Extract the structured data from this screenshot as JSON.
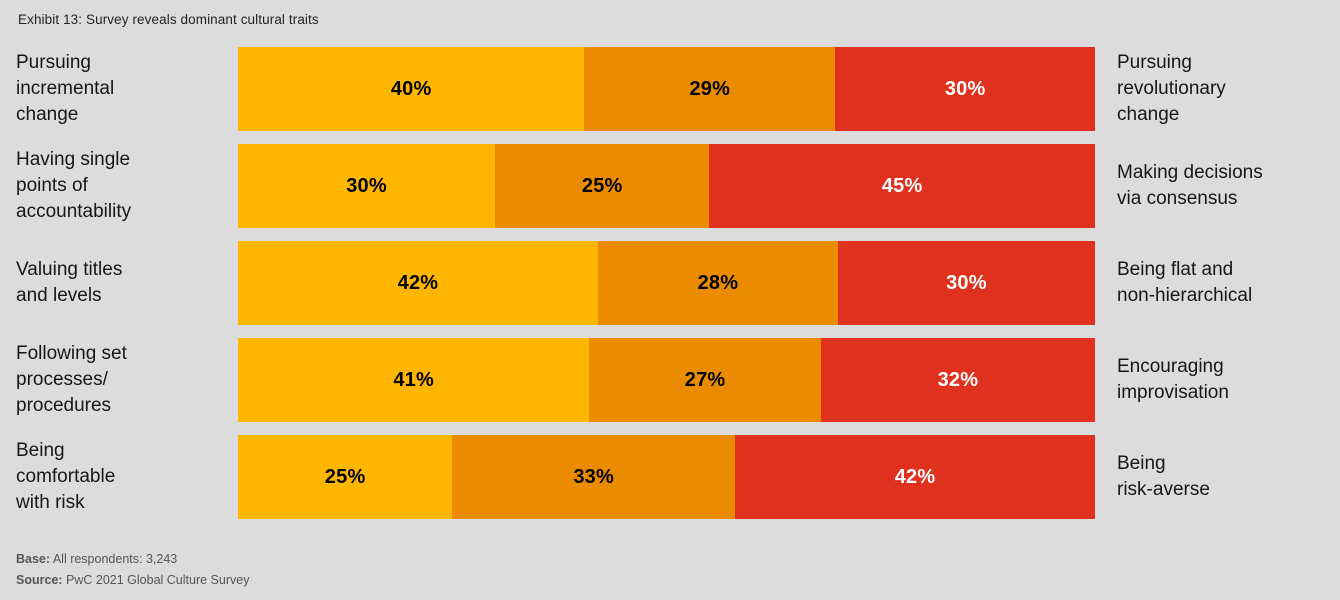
{
  "title": "Exhibit 13: Survey reveals dominant cultural traits",
  "colors": {
    "background": "#dcdcdc",
    "yellow": "#ffb600",
    "orange": "#eb8c00",
    "red": "#e0301e"
  },
  "footer": {
    "base_label": "Base:",
    "base_text": " All respondents: 3,243",
    "source_label": "Source:",
    "source_text": " PwC 2021 Global Culture Survey"
  },
  "chart_data": {
    "type": "bar",
    "subtype": "horizontal-stacked",
    "title": "Exhibit 13: Survey reveals dominant cultural traits",
    "unit": "%",
    "legend": "none",
    "grid": false,
    "series_colors": [
      "#ffb600",
      "#eb8c00",
      "#e0301e"
    ],
    "value_label_colors": [
      "#000000",
      "#000000",
      "#ffffff"
    ],
    "rows": [
      {
        "left_label": "Pursuing\nincremental\nchange",
        "right_label": "Pursuing\nrevolutionary\nchange",
        "values": [
          40,
          29,
          30
        ]
      },
      {
        "left_label": "Having single\npoints of\naccountability",
        "right_label": "Making decisions\nvia consensus",
        "values": [
          30,
          25,
          45
        ]
      },
      {
        "left_label": "Valuing titles\nand levels",
        "right_label": "Being flat and\nnon-hierarchical",
        "values": [
          42,
          28,
          30
        ]
      },
      {
        "left_label": "Following set\nprocesses/\nprocedures",
        "right_label": "Encouraging\nimprovisation",
        "values": [
          41,
          27,
          32
        ]
      },
      {
        "left_label": "Being\ncomfortable\nwith risk",
        "right_label": "Being\nrisk-averse",
        "values": [
          25,
          33,
          42
        ]
      }
    ]
  }
}
